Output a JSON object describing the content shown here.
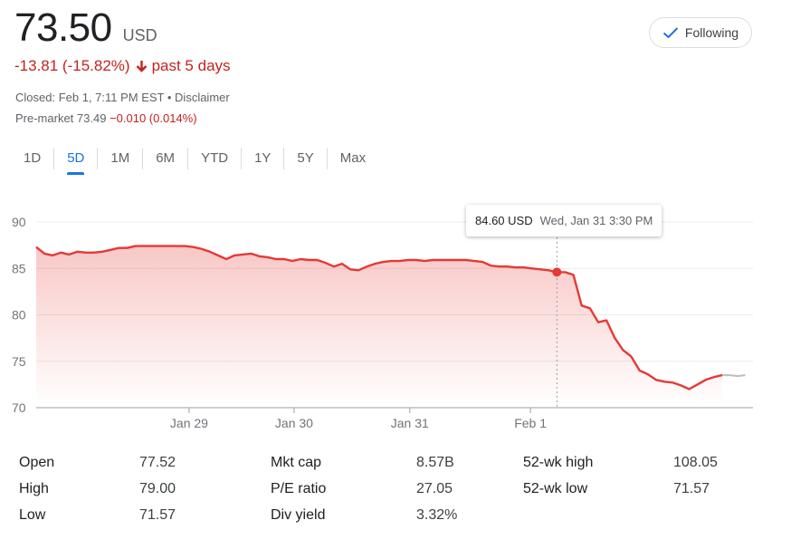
{
  "header": {
    "price": "73.50",
    "currency": "USD",
    "follow_label": "Following",
    "change_text": "-13.81 (-15.82%)",
    "change_period": "past 5 days",
    "closed_text": "Closed: Feb 1, 7:11 PM EST • Disclaimer",
    "premarket_label": "Pre-market 73.49",
    "premarket_change": "−0.010 (0.014%)"
  },
  "ranges": {
    "items": [
      "1D",
      "5D",
      "1M",
      "6M",
      "YTD",
      "1Y",
      "5Y",
      "Max"
    ],
    "active": "5D"
  },
  "tooltip": {
    "value": "84.60 USD",
    "date": "Wed, Jan 31 3:30 PM"
  },
  "colors": {
    "line": "#e53935",
    "negative": "#c5221f",
    "accent": "#1a73e8",
    "afterhours": "#bdbdbd"
  },
  "stats": [
    {
      "label": "Open",
      "value": "77.52"
    },
    {
      "label": "High",
      "value": "79.00"
    },
    {
      "label": "Low",
      "value": "71.57"
    },
    {
      "label": "Mkt cap",
      "value": "8.57B"
    },
    {
      "label": "P/E ratio",
      "value": "27.05"
    },
    {
      "label": "Div yield",
      "value": "3.32%"
    },
    {
      "label": "52-wk high",
      "value": "108.05"
    },
    {
      "label": "52-wk low",
      "value": "71.57"
    }
  ],
  "chart_data": {
    "type": "line",
    "ylim": [
      70,
      90
    ],
    "yticks": [
      90,
      85,
      80,
      75,
      70
    ],
    "xticks": [
      "Jan 29",
      "Jan 30",
      "Jan 31",
      "Feb 1"
    ],
    "grid": true,
    "series": [
      {
        "values": [
          87.3,
          86.6,
          86.4,
          86.7,
          86.5,
          86.8,
          86.7,
          86.7,
          86.8,
          87.0,
          87.2,
          87.2,
          87.4,
          87.4,
          87.4,
          87.4,
          87.4,
          87.4,
          87.4,
          87.3,
          87.1,
          86.8,
          86.4,
          86.0,
          86.4,
          86.5,
          86.6,
          86.3,
          86.2,
          86.0,
          86.0,
          85.8,
          86.0,
          85.9,
          85.9,
          85.6,
          85.2,
          85.5,
          84.9,
          84.8,
          85.2,
          85.5,
          85.7,
          85.8,
          85.8,
          85.9,
          85.9,
          85.8,
          85.9,
          85.9,
          85.9,
          85.9,
          85.9,
          85.8,
          85.7,
          85.3,
          85.2,
          85.2,
          85.1,
          85.1,
          85.0,
          84.9,
          84.8,
          84.6,
          84.6,
          84.3,
          81.0,
          80.7,
          79.2,
          79.4,
          77.5,
          76.2,
          75.5,
          74.0,
          73.6,
          73.0,
          72.8,
          72.7,
          72.4,
          72.0,
          72.5,
          73.0,
          73.3,
          73.5
        ],
        "afterhours": [
          73.5,
          73.5,
          73.4,
          73.5
        ]
      }
    ]
  }
}
